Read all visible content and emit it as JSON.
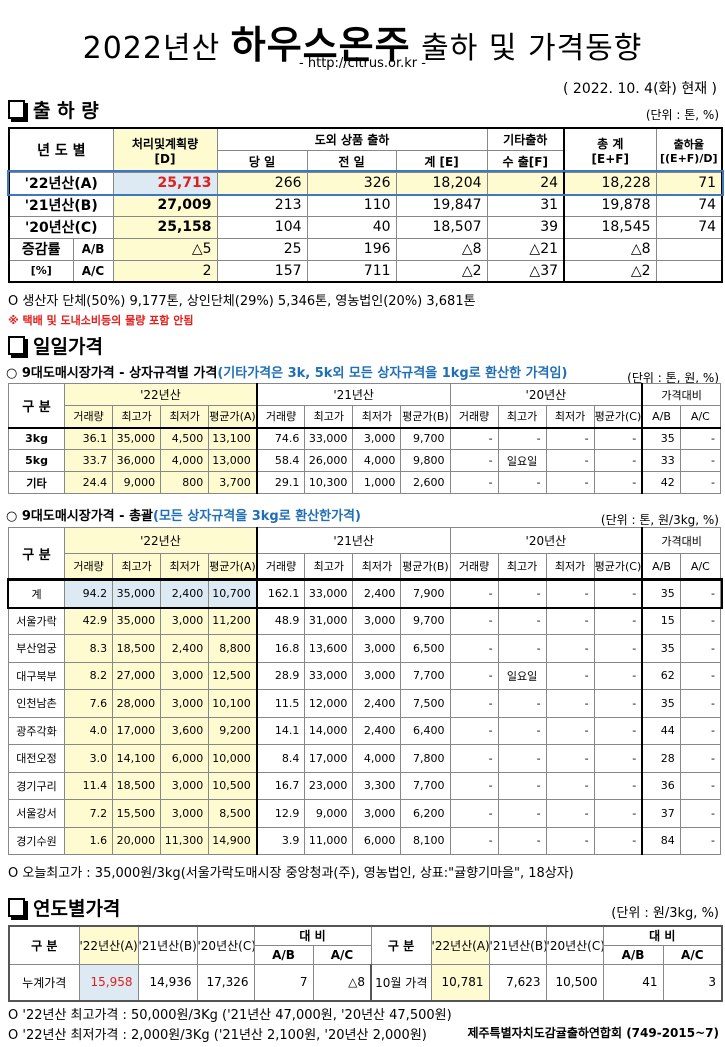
{
  "header": {
    "title_prefix": "2022년산",
    "title_main": "하우스온주",
    "title_suffix": "출하 및 가격동향",
    "url": "- http://citrus.or.kr -",
    "date": "( 2022. 10. 4(화) 현재 )"
  },
  "shipment": {
    "heading": "출 하 량",
    "unit": "(단위 : 톤, %)",
    "headers": {
      "year": "년 도 별",
      "plan": "처리및계획량",
      "plan_code": "[D]",
      "domestic": "도외 상품 출하",
      "other": "기타출하",
      "total": "총 계",
      "total_code": "[E+F]",
      "rate": "출하율",
      "rate_code": "[(E+F)/D]",
      "today": "당 일",
      "prev": "전 일",
      "sum": "계 [E]",
      "export": "수 출[F]"
    },
    "rows": [
      [
        "'22년산(A)",
        "25,713",
        "266",
        "326",
        "18,204",
        "24",
        "18,228",
        "71"
      ],
      [
        "'21년산(B)",
        "27,009",
        "213",
        "110",
        "19,847",
        "31",
        "19,878",
        "74"
      ],
      [
        "'20년산(C)",
        "25,158",
        "104",
        "40",
        "18,507",
        "39",
        "18,545",
        "74"
      ]
    ],
    "change_label": "증감률",
    "change_unit": "[%]",
    "change_rows": [
      [
        "A/B",
        "△5",
        "25",
        "196",
        "△8",
        "△21",
        "△8",
        ""
      ],
      [
        "A/C",
        "2",
        "157",
        "711",
        "△2",
        "△37",
        "△2",
        ""
      ]
    ],
    "note": "O 생산자 단체(50%)  9,177톤,    상인단체(29%)  5,346톤,    영농법인(20%)   3,681톤",
    "warning": "※ 택배 및 도내소비등의 물량 포함 안됨"
  },
  "daily": {
    "heading": "일일가격",
    "box_title": "○ 9대도매시장가격 - 상자규격별 가격",
    "box_note": "(기타가격은 3k, 5k외 모든 상자규격을 1kg로 환산한 가격임)",
    "box_unit": "(단위 : 톤, 원, %)",
    "headers": {
      "category": "구  분",
      "y22": "'22년산",
      "y21": "'21년산",
      "y20": "'20년산",
      "compare": "가격대비",
      "vol": "거래량",
      "max": "최고가",
      "min": "최저가",
      "avgA": "평균가(A)",
      "avgB": "평균가(B)",
      "avgC": "평균가(C)",
      "ab": "A/B",
      "ac": "A/C"
    },
    "box_rows": [
      [
        "3kg",
        "36.1",
        "35,000",
        "4,500",
        "13,100",
        "74.6",
        "33,000",
        "3,000",
        "9,700",
        "-",
        "-",
        "-",
        "-",
        "35",
        "-"
      ],
      [
        "5kg",
        "33.7",
        "36,000",
        "4,000",
        "13,000",
        "58.4",
        "26,000",
        "4,000",
        "9,800",
        "-",
        "일요일",
        "-",
        "-",
        "33",
        "-"
      ],
      [
        "기타",
        "24.4",
        "9,000",
        "800",
        "3,700",
        "29.1",
        "10,300",
        "1,000",
        "2,600",
        "-",
        "-",
        "-",
        "-",
        "42",
        "-"
      ]
    ],
    "total_title": "○ 9대도매시장가격 - 총괄",
    "total_note": "(모든 상자규격을 3kg로 환산한가격)",
    "total_unit": "(단위 : 톤, 원/3kg, %)",
    "total_rows": [
      [
        "계",
        "94.2",
        "35,000",
        "2,400",
        "10,700",
        "162.1",
        "33,000",
        "2,400",
        "7,900",
        "-",
        "-",
        "-",
        "-",
        "35",
        "-"
      ],
      [
        "서울가락",
        "42.9",
        "35,000",
        "3,000",
        "11,200",
        "48.9",
        "31,000",
        "3,000",
        "9,700",
        "-",
        "-",
        "-",
        "-",
        "15",
        "-"
      ],
      [
        "부산엄궁",
        "8.3",
        "18,500",
        "2,400",
        "8,800",
        "16.8",
        "13,600",
        "3,000",
        "6,500",
        "-",
        "-",
        "-",
        "-",
        "35",
        "-"
      ],
      [
        "대구북부",
        "8.2",
        "27,000",
        "3,000",
        "12,500",
        "28.9",
        "33,000",
        "3,000",
        "7,700",
        "-",
        "일요일",
        "-",
        "-",
        "62",
        "-"
      ],
      [
        "인천남촌",
        "7.6",
        "28,000",
        "3,000",
        "10,100",
        "11.5",
        "12,000",
        "2,400",
        "7,500",
        "-",
        "-",
        "-",
        "-",
        "35",
        "-"
      ],
      [
        "광주각화",
        "4.0",
        "17,000",
        "3,600",
        "9,200",
        "14.1",
        "14,000",
        "2,400",
        "6,400",
        "-",
        "-",
        "-",
        "-",
        "44",
        "-"
      ],
      [
        "대전오정",
        "3.0",
        "14,100",
        "6,000",
        "10,000",
        "8.4",
        "17,000",
        "4,000",
        "7,800",
        "-",
        "-",
        "-",
        "-",
        "28",
        "-"
      ],
      [
        "경기구리",
        "11.4",
        "18,500",
        "3,000",
        "10,500",
        "16.7",
        "23,000",
        "3,300",
        "7,700",
        "-",
        "-",
        "-",
        "-",
        "36",
        "-"
      ],
      [
        "서울강서",
        "7.2",
        "15,500",
        "3,000",
        "8,500",
        "12.9",
        "9,000",
        "3,000",
        "6,200",
        "-",
        "-",
        "-",
        "-",
        "37",
        "-"
      ],
      [
        "경기수원",
        "1.6",
        "20,000",
        "11,300",
        "14,900",
        "3.9",
        "11,000",
        "6,000",
        "8,100",
        "-",
        "-",
        "-",
        "-",
        "84",
        "-"
      ]
    ],
    "total_avgC": "평균가(C)",
    "note": "O 오늘최고가 : 35,000원/3kg(서울가락도매시장   중앙청과(주),   영농법인,   상표:\"귤향기마을\",   18상자)"
  },
  "yearly": {
    "heading": "연도별가격",
    "unit": "(단위 : 원/3kg, %)",
    "headers": {
      "category": "구  분",
      "a": "'22년산(A)",
      "b": "'21년산(B)",
      "c": "'20년산(C)",
      "compare": "대    비",
      "ab": "A/B",
      "ac": "A/C"
    },
    "left": [
      "누계가격",
      "15,958",
      "14,936",
      "17,326",
      "7",
      "△8"
    ],
    "right": [
      "10월 가격",
      "10,781",
      "7,623",
      "10,500",
      "41",
      "3"
    ],
    "note1": "O  '22년산 최고가격 : 50,000원/3Kg ('21년산 47,000원, '20년산 47,500원)",
    "note2": "O  '22년산 최저가격 :   2,000원/3Kg ('21년산   2,100원, '20년산  2,000원)",
    "footer": "제주특별자치도감귤출하연합회 (749-2015~7)"
  },
  "colors": {
    "highlight_yellow": "#fffbd0",
    "highlight_blue": "#dde9f3",
    "red": "#e0201c",
    "accent_blue": "#1f6fb5"
  }
}
